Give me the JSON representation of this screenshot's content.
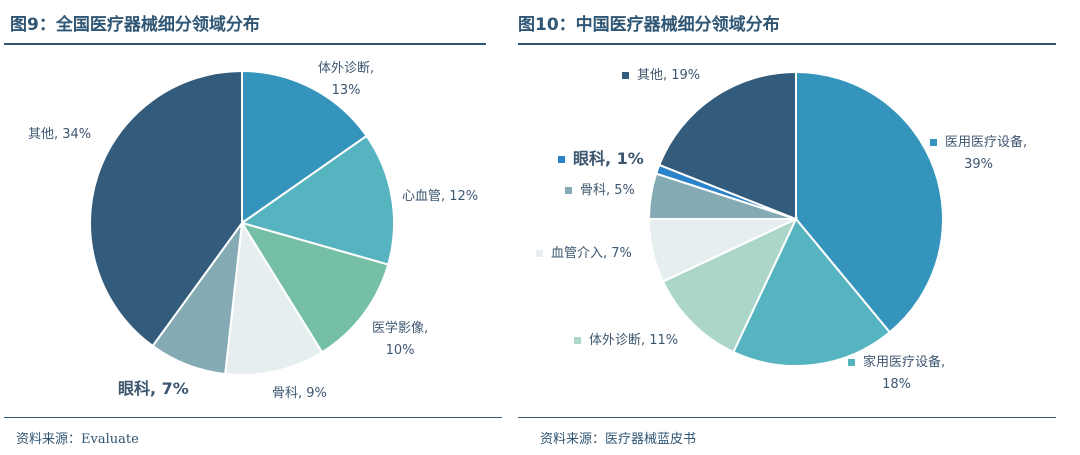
{
  "left": {
    "title": "图9：全国医疗器械细分领域分布",
    "source": "资料来源：Evaluate"
  },
  "right": {
    "title": "图10：中国医疗器械细分领域分布",
    "source": "资料来源：医疗器械蓝皮书"
  },
  "chart_data": [
    {
      "type": "pie",
      "title": "图9：全国医疗器械细分领域分布",
      "categories": [
        "体外诊断",
        "心血管",
        "医学影像",
        "骨科",
        "眼科",
        "其他"
      ],
      "values": [
        13,
        12,
        10,
        9,
        7,
        34
      ],
      "labels": [
        "体外诊断,\n13%",
        "心血管, 12%",
        "医学影像,\n10%",
        "骨科, 9%",
        "眼科, 7%",
        "其他, 34%"
      ],
      "colors": [
        "#3594bb",
        "#56b4c0",
        "#74bfa6",
        "#e6eef0",
        "#84abb3",
        "#335b7b"
      ]
    },
    {
      "type": "pie",
      "title": "图10：中国医疗器械细分领域分布",
      "categories": [
        "医用医疗设备",
        "家用医疗设备",
        "体外诊断",
        "血管介入",
        "骨科",
        "眼科",
        "其他"
      ],
      "values": [
        39,
        18,
        11,
        7,
        5,
        1,
        19
      ],
      "labels": [
        "医用医疗设备,\n39%",
        "家用医疗设备,\n18%",
        "体外诊断, 11%",
        "血管介入, 7%",
        "骨科, 5%",
        "眼科, 1%",
        "其他, 19%"
      ],
      "colors": [
        "#3594bb",
        "#56b4c0",
        "#acd6c9",
        "#e6eef0",
        "#84abb3",
        "#2a82c8",
        "#335b7b"
      ]
    }
  ]
}
